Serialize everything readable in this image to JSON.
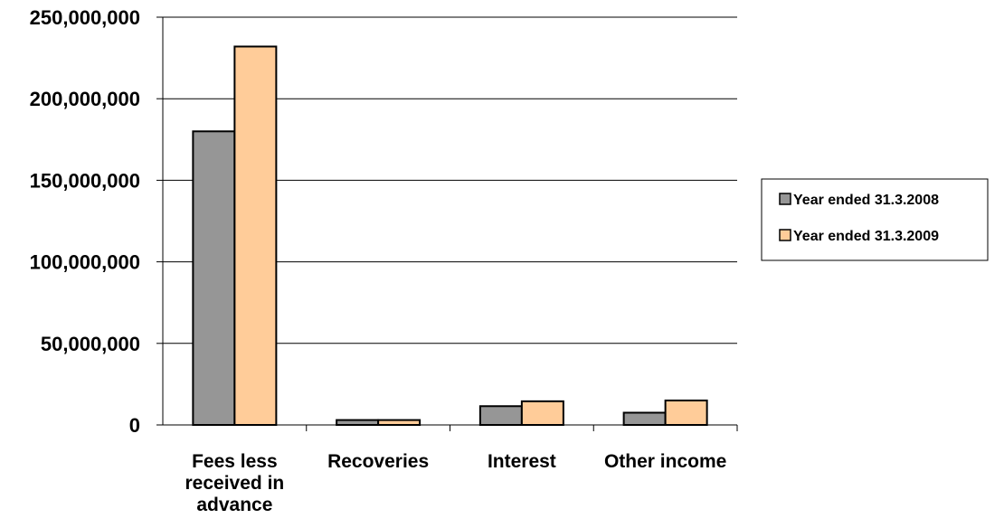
{
  "chart_data": {
    "type": "bar",
    "title": "",
    "xlabel": "",
    "ylabel": "",
    "categories": [
      [
        "Fees less",
        "received in",
        "advance"
      ],
      [
        "Recoveries"
      ],
      [
        "Interest"
      ],
      [
        "Other income"
      ]
    ],
    "series": [
      {
        "name": "Year ended 31.3.2008",
        "color": "#969696",
        "values": [
          180000000,
          3000000,
          11500000,
          7500000
        ]
      },
      {
        "name": "Year ended 31.3.2009",
        "color": "#FFCC99",
        "values": [
          232000000,
          3000000,
          14500000,
          15000000
        ]
      }
    ],
    "ylim": [
      0,
      250000000
    ],
    "yticks": [
      0,
      50000000,
      100000000,
      150000000,
      200000000,
      250000000
    ],
    "ytick_labels": [
      "0",
      "50,000,000",
      "100,000,000",
      "150,000,000",
      "200,000,000",
      "250,000,000"
    ],
    "grid": true,
    "legend_position": "right"
  }
}
